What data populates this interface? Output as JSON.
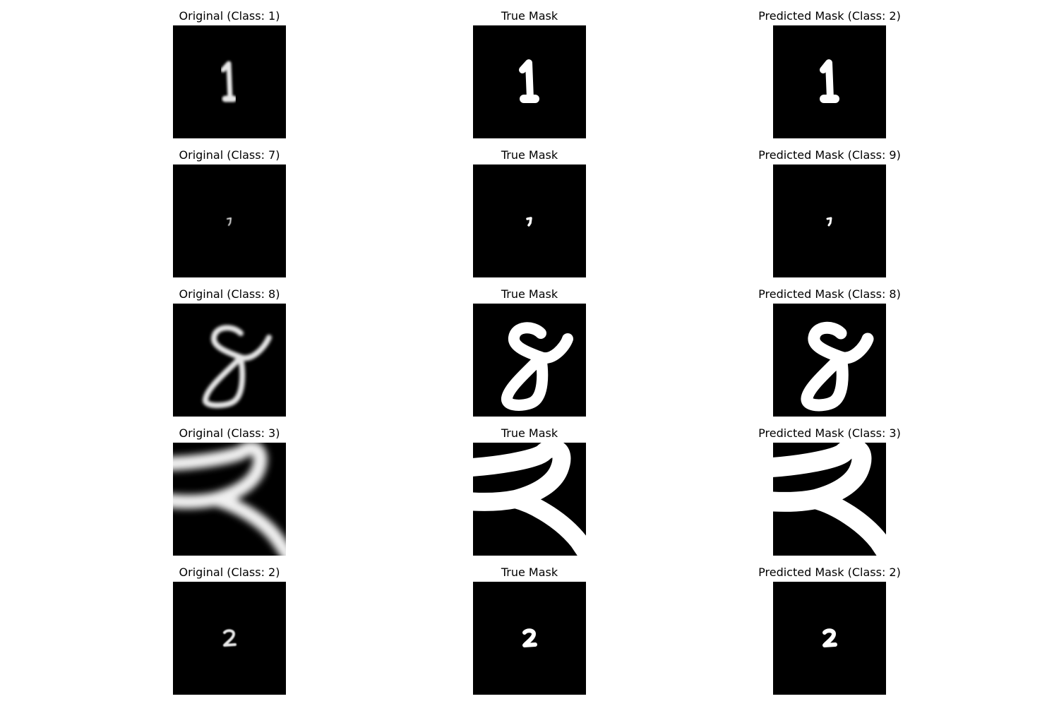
{
  "figure": {
    "rows": [
      {
        "original_title": "Original (Class: 1)",
        "true_title": "True Mask",
        "pred_title": "Predicted Mask (Class: 2)",
        "digit": "one"
      },
      {
        "original_title": "Original (Class: 7)",
        "true_title": "True Mask",
        "pred_title": "Predicted Mask (Class: 9)",
        "digit": "seven-small"
      },
      {
        "original_title": "Original (Class: 8)",
        "true_title": "True Mask",
        "pred_title": "Predicted Mask (Class: 8)",
        "digit": "eight"
      },
      {
        "original_title": "Original (Class: 3)",
        "true_title": "True Mask",
        "pred_title": "Predicted Mask (Class: 3)",
        "digit": "three-zoomed"
      },
      {
        "original_title": "Original (Class: 2)",
        "true_title": "True Mask",
        "pred_title": "Predicted Mask (Class: 2)",
        "digit": "two"
      }
    ]
  },
  "colors": {
    "background": "#000000",
    "foreground": "#ffffff"
  }
}
